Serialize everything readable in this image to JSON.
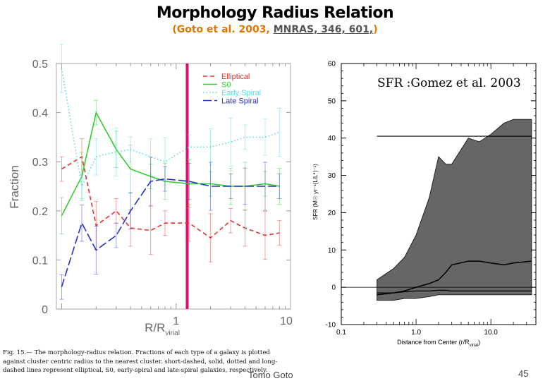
{
  "slide": {
    "title": "Morphology Radius Relation",
    "citation_open": "(Goto et al. 2003, ",
    "citation_link": "MNRAS, 346, 601,",
    "citation_close": ")",
    "author": "Tomo Goto",
    "page_number": "45",
    "caption": "Fig. 15.— The morphology-radius relation. Fractions of each type of a galaxy is plotted against cluster centric radius to the nearest cluster. short-dashed, solid, dotted and long-dashed lines represent elliptical, S0, early-spiral and late-spiral galaxies, respectively."
  },
  "colors": {
    "elliptical": "#e83030",
    "s0": "#33cc33",
    "early_spiral": "#55dddd",
    "late_spiral": "#2233cc",
    "virial_line": "#e0106a",
    "sfr_band": "#666666"
  },
  "chart_data": [
    {
      "type": "line",
      "title": "",
      "xlabel": "R/R_virial",
      "xlabel_main": "R/R",
      "xlabel_sub": "virial",
      "ylabel": "Fraction",
      "xscale": "log",
      "xlim": [
        0.09,
        10
      ],
      "ylim": [
        0,
        0.5
      ],
      "x_ticks": [
        1,
        10
      ],
      "x_tick_labels": [
        "1",
        "10"
      ],
      "y_ticks": [
        0,
        0.1,
        0.2,
        0.3,
        0.4,
        0.5
      ],
      "y_tick_labels": [
        "0",
        "0.1",
        "0.2",
        "0.3",
        "0.4",
        "0.5"
      ],
      "legend_position": "top-right",
      "vertical_marker": 1.25,
      "x": [
        0.1,
        0.15,
        0.2,
        0.3,
        0.4,
        0.6,
        0.8,
        1.3,
        2,
        3,
        4,
        6,
        8
      ],
      "series": [
        {
          "name": "Elliptical",
          "key": "elliptical",
          "dash": "6,4",
          "values": [
            0.285,
            0.31,
            0.17,
            0.2,
            0.165,
            0.16,
            0.175,
            0.175,
            0.145,
            0.18,
            0.165,
            0.15,
            0.155
          ]
        },
        {
          "name": "S0",
          "key": "s0",
          "dash": "",
          "values": [
            0.19,
            0.27,
            0.4,
            0.325,
            0.285,
            0.27,
            0.26,
            0.255,
            0.255,
            0.25,
            0.25,
            0.255,
            0.25
          ]
        },
        {
          "name": "Early Spiral",
          "key": "early_spiral",
          "dash": "1.5,3",
          "values": [
            0.49,
            0.25,
            0.31,
            0.32,
            0.325,
            0.31,
            0.3,
            0.33,
            0.33,
            0.34,
            0.35,
            0.35,
            0.36
          ]
        },
        {
          "name": "Late Spiral",
          "key": "late_spiral",
          "dash": "12,4",
          "values": [
            0.045,
            0.175,
            0.12,
            0.15,
            0.2,
            0.26,
            0.265,
            0.26,
            0.25,
            0.25,
            0.25,
            0.25,
            0.25
          ]
        }
      ]
    },
    {
      "type": "area",
      "title": "SFR :Gomez et al. 2003",
      "xlabel": "Distance from Center (r/R_virial)",
      "xlabel_main": "Distance from Center (r/R",
      "xlabel_sub": "virial",
      "xlabel_close": ")",
      "ylabel": "SFR (M☉ yr⁻¹(L/L*)⁻¹)",
      "xscale": "log",
      "xlim": [
        0.1,
        40
      ],
      "ylim": [
        -10,
        60
      ],
      "x_ticks": [
        0.1,
        1,
        10
      ],
      "x_tick_labels": [
        "0.1",
        "1.0",
        "10.0"
      ],
      "y_ticks": [
        -10,
        0,
        10,
        20,
        30,
        40,
        50,
        60
      ],
      "y_tick_labels": [
        "-10",
        "0",
        "10",
        "20",
        "30",
        "40",
        "50",
        "60"
      ],
      "x": [
        0.3,
        0.5,
        0.7,
        1.0,
        1.5,
        2.0,
        2.5,
        3.0,
        5.0,
        7.0,
        10.0,
        15.0,
        20.0,
        35.0
      ],
      "upper": [
        2,
        5,
        8,
        14,
        24,
        35,
        33,
        33,
        40,
        39,
        41,
        44,
        45,
        45
      ],
      "lower": [
        -3.5,
        -3.5,
        -3,
        -3,
        -2.5,
        -2,
        -2,
        -2,
        -2,
        -2,
        -2,
        -2,
        -2,
        -2
      ],
      "median": [
        -2,
        -1.5,
        -1,
        0,
        1,
        2,
        4,
        6,
        7,
        7,
        6.5,
        6,
        6.5,
        7
      ],
      "other_line": [
        -1.5,
        -1.5,
        -1.2,
        -1,
        -1,
        -0.8,
        -0.8,
        -1,
        -1,
        -1,
        -1,
        -1,
        -1,
        -1
      ],
      "hline": 40.5,
      "hline_xrange": [
        0.3,
        35
      ],
      "zero_line": true
    }
  ]
}
